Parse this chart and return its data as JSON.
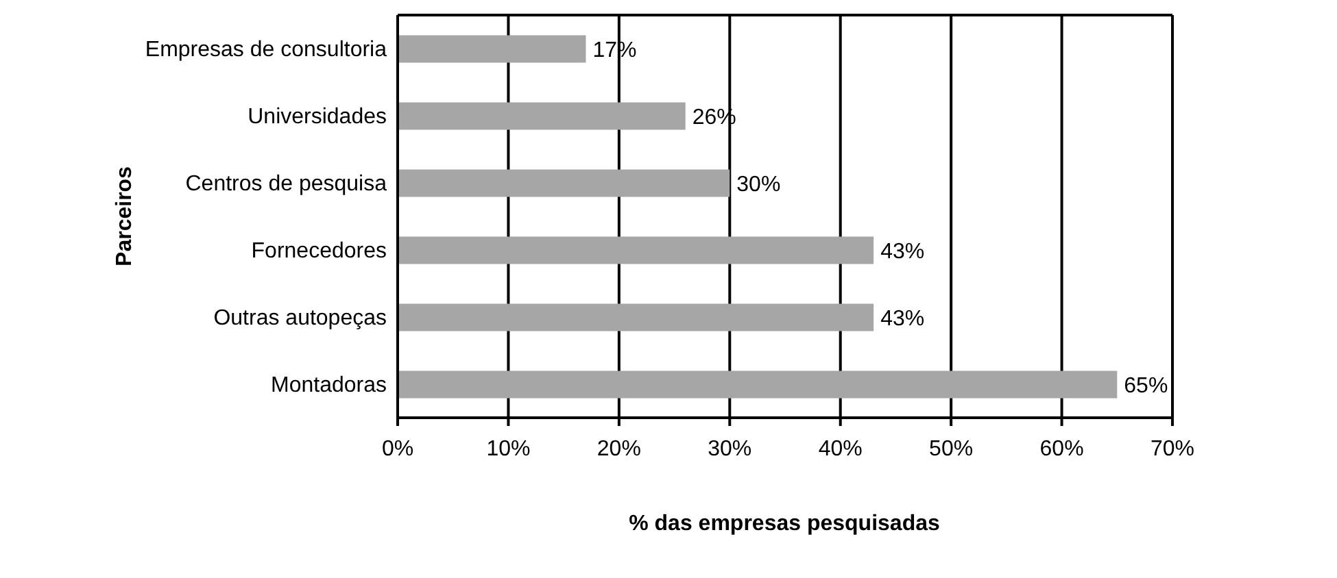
{
  "chart_data": {
    "type": "bar",
    "orientation": "horizontal",
    "xlabel": "% das empresas pesquisadas",
    "ylabel": "Parceiros",
    "categories": [
      "Empresas de consultoria",
      "Universidades",
      "Centros de pesquisa",
      "Fornecedores",
      "Outras autopeças",
      "Montadoras"
    ],
    "values": [
      17,
      26,
      30,
      43,
      43,
      65
    ],
    "value_labels": [
      "17%",
      "26%",
      "30%",
      "43%",
      "43%",
      "65%"
    ],
    "color": "#a6a6a6",
    "xlim": [
      0,
      70
    ],
    "xticks": [
      {
        "value": 0,
        "label": "0%"
      },
      {
        "value": 10,
        "label": "10%"
      },
      {
        "value": 20,
        "label": "20%"
      },
      {
        "value": 30,
        "label": "30%"
      },
      {
        "value": 40,
        "label": "40%"
      },
      {
        "value": 50,
        "label": "50%"
      },
      {
        "value": 60,
        "label": "60%"
      },
      {
        "value": 70,
        "label": "70%"
      }
    ],
    "grid": "x",
    "legend": false
  }
}
